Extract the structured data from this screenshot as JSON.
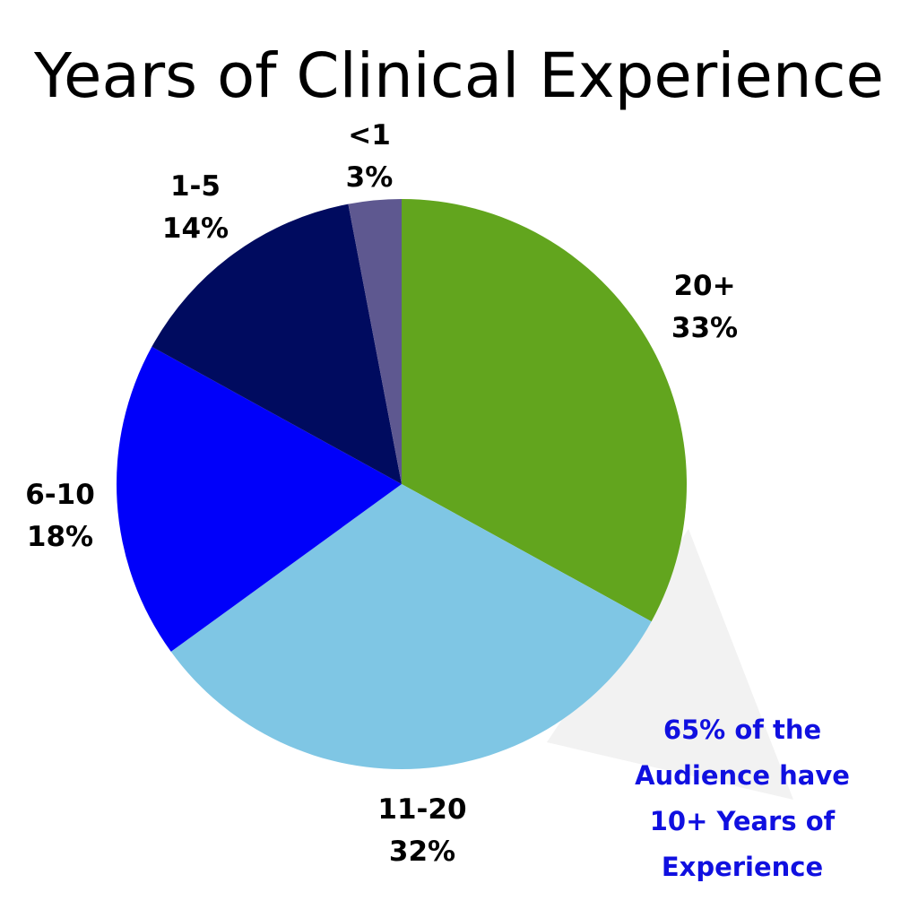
{
  "chart_data": {
    "type": "pie",
    "title": "Years of Clinical Experience",
    "slices": [
      {
        "category": "20+",
        "value": 33,
        "value_label": "33%",
        "color": "#62a51e"
      },
      {
        "category": "11-20",
        "value": 32,
        "value_label": "32%",
        "color": "#7fc6e4"
      },
      {
        "category": "6-10",
        "value": 18,
        "value_label": "18%",
        "color": "#0000fa"
      },
      {
        "category": "1-5",
        "value": 14,
        "value_label": "14%",
        "color": "#000b5f"
      },
      {
        "category": "<1",
        "value": 3,
        "value_label": "3%",
        "color": "#5e5890"
      }
    ],
    "start_angle": "12 o'clock",
    "direction": "clockwise",
    "legend": "none",
    "callout": {
      "lines": [
        "65% of the",
        "Audience have",
        "10+ Years of",
        "Experience"
      ],
      "color": "#1010e0",
      "highlight_color": "#f2f2f2"
    }
  }
}
